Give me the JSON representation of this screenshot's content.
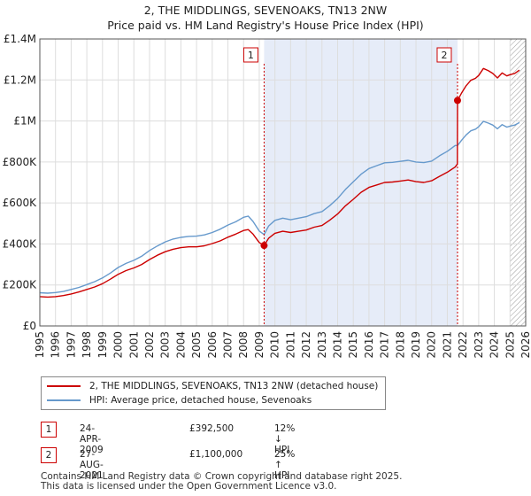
{
  "header": {
    "title_line1": "2, THE MIDDLINGS, SEVENOAKS, TN13 2NW",
    "title_line2": "Price paid vs. HM Land Registry's House Price Index (HPI)"
  },
  "chart_data": {
    "type": "line",
    "title": "2, THE MIDDLINGS, SEVENOAKS, TN13 2NW — Price paid vs. HM Land Registry's House Price Index (HPI)",
    "xlabel": "",
    "ylabel": "",
    "xlim": [
      1995,
      2026
    ],
    "ylim": [
      0,
      1400000
    ],
    "x_ticks": [
      1995,
      1996,
      1997,
      1998,
      1999,
      2000,
      2001,
      2002,
      2003,
      2004,
      2005,
      2006,
      2007,
      2008,
      2009,
      2010,
      2011,
      2012,
      2013,
      2014,
      2015,
      2016,
      2017,
      2018,
      2019,
      2020,
      2021,
      2022,
      2023,
      2024,
      2025,
      2026
    ],
    "y_ticks": [
      0,
      200000,
      400000,
      600000,
      800000,
      1000000,
      1200000,
      1400000
    ],
    "y_tick_labels": [
      "£0",
      "£200K",
      "£400K",
      "£600K",
      "£800K",
      "£1M",
      "£1.2M",
      "£1.4M"
    ],
    "grid": true,
    "shaded_span": [
      2009.31,
      2021.65
    ],
    "future_hatch_from": 2025.0,
    "series": [
      {
        "name": "2, THE MIDDLINGS, SEVENOAKS, TN13 2NW (detached house)",
        "color": "#cc0000",
        "x": [
          1995.0,
          1995.5,
          1996.0,
          1996.5,
          1997.0,
          1997.5,
          1998.0,
          1998.5,
          1999.0,
          1999.5,
          2000.0,
          2000.5,
          2001.0,
          2001.5,
          2002.0,
          2002.5,
          2003.0,
          2003.5,
          2004.0,
          2004.5,
          2005.0,
          2005.5,
          2006.0,
          2006.5,
          2007.0,
          2007.5,
          2008.0,
          2008.3,
          2008.6,
          2009.0,
          2009.31,
          2009.6,
          2010.0,
          2010.5,
          2011.0,
          2011.5,
          2012.0,
          2012.5,
          2013.0,
          2013.5,
          2014.0,
          2014.5,
          2015.0,
          2015.5,
          2016.0,
          2016.5,
          2017.0,
          2017.5,
          2018.0,
          2018.5,
          2019.0,
          2019.5,
          2020.0,
          2020.5,
          2021.0,
          2021.5,
          2021.64,
          2021.65,
          2021.9,
          2022.2,
          2022.5,
          2022.8,
          2023.0,
          2023.3,
          2023.6,
          2023.9,
          2024.2,
          2024.5,
          2024.8,
          2025.0,
          2025.3,
          2025.6
        ],
        "values": [
          143000,
          141000,
          143000,
          148000,
          156000,
          166000,
          178000,
          190000,
          206000,
          228000,
          252000,
          270000,
          283000,
          300000,
          324000,
          345000,
          362000,
          374000,
          382000,
          386000,
          386000,
          391000,
          402000,
          415000,
          433000,
          448000,
          466000,
          470000,
          448000,
          407000,
          392500,
          428000,
          452000,
          462000,
          456000,
          462000,
          468000,
          482000,
          490000,
          516000,
          546000,
          586000,
          618000,
          652000,
          676000,
          688000,
          700000,
          702000,
          707000,
          712000,
          704000,
          700000,
          708000,
          730000,
          750000,
          775000,
          790000,
          1100000,
          1135000,
          1172000,
          1198000,
          1208000,
          1222000,
          1256000,
          1246000,
          1232000,
          1210000,
          1234000,
          1220000,
          1226000,
          1232000,
          1248000
        ]
      },
      {
        "name": "HPI: Average price, detached house, Sevenoaks",
        "color": "#6699cc",
        "x": [
          1995.0,
          1995.5,
          1996.0,
          1996.5,
          1997.0,
          1997.5,
          1998.0,
          1998.5,
          1999.0,
          1999.5,
          2000.0,
          2000.5,
          2001.0,
          2001.5,
          2002.0,
          2002.5,
          2003.0,
          2003.5,
          2004.0,
          2004.5,
          2005.0,
          2005.5,
          2006.0,
          2006.5,
          2007.0,
          2007.5,
          2008.0,
          2008.3,
          2008.6,
          2009.0,
          2009.31,
          2009.6,
          2010.0,
          2010.5,
          2011.0,
          2011.5,
          2012.0,
          2012.5,
          2013.0,
          2013.5,
          2014.0,
          2014.5,
          2015.0,
          2015.5,
          2016.0,
          2016.5,
          2017.0,
          2017.5,
          2018.0,
          2018.5,
          2019.0,
          2019.5,
          2020.0,
          2020.5,
          2021.0,
          2021.5,
          2021.65,
          2021.9,
          2022.2,
          2022.5,
          2022.8,
          2023.0,
          2023.3,
          2023.6,
          2023.9,
          2024.2,
          2024.5,
          2024.8,
          2025.0,
          2025.3,
          2025.6
        ],
        "values": [
          162000,
          160000,
          163000,
          168000,
          178000,
          188000,
          202000,
          216000,
          234000,
          258000,
          285000,
          305000,
          320000,
          340000,
          368000,
          390000,
          410000,
          424000,
          432000,
          437000,
          438000,
          444000,
          456000,
          472000,
          492000,
          508000,
          530000,
          536000,
          510000,
          463000,
          446000,
          488000,
          515000,
          526000,
          518000,
          526000,
          533000,
          548000,
          558000,
          587000,
          622000,
          666000,
          703000,
          740000,
          768000,
          782000,
          796000,
          798000,
          803000,
          808000,
          800000,
          797000,
          804000,
          830000,
          852000,
          880000,
          880000,
          905000,
          932000,
          952000,
          960000,
          972000,
          998000,
          990000,
          980000,
          962000,
          982000,
          970000,
          975000,
          980000,
          992000
        ]
      }
    ],
    "annotations": [
      {
        "label": "1",
        "x": 2009.31,
        "y": 392500
      },
      {
        "label": "2",
        "x": 2021.65,
        "y": 1100000
      }
    ]
  },
  "legend": {
    "series1_label": "2, THE MIDDLINGS, SEVENOAKS, TN13 2NW (detached house)",
    "series2_label": "HPI: Average price, detached house, Sevenoaks"
  },
  "transactions": [
    {
      "num": "1",
      "date": "24-APR-2009",
      "price": "£392,500",
      "hpi": "12% ↓ HPI"
    },
    {
      "num": "2",
      "date": "27-AUG-2021",
      "price": "£1,100,000",
      "hpi": "25% ↑ HPI"
    }
  ],
  "footer": {
    "line1": "Contains HM Land Registry data © Crown copyright and database right 2025.",
    "line2": "This data is licensed under the Open Government Licence v3.0."
  },
  "colors": {
    "price_line": "#cc0000",
    "hpi_line": "#6699cc",
    "shade": "#e6ecf8",
    "grid": "#dddddd"
  }
}
